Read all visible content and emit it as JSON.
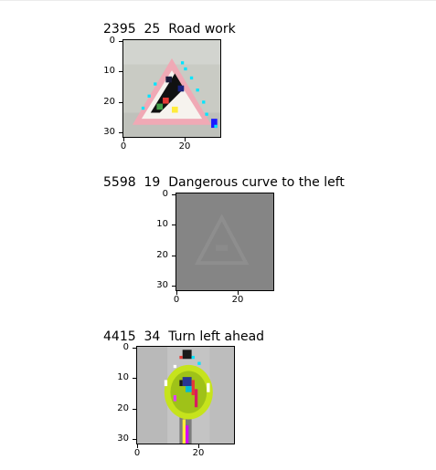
{
  "figure": {
    "panels": [
      {
        "title": "2395  25  Road work",
        "yticks": [
          "0",
          "10",
          "20",
          "30"
        ],
        "xticks": [
          "0",
          "20"
        ]
      },
      {
        "title": "5598  19  Dangerous curve to the left",
        "yticks": [
          "0",
          "10",
          "20",
          "30"
        ],
        "xticks": [
          "0",
          "20"
        ]
      },
      {
        "title": "4415  34  Turn left ahead",
        "yticks": [
          "0",
          "10",
          "20",
          "30"
        ],
        "xticks": [
          "0",
          "20"
        ]
      }
    ]
  }
}
